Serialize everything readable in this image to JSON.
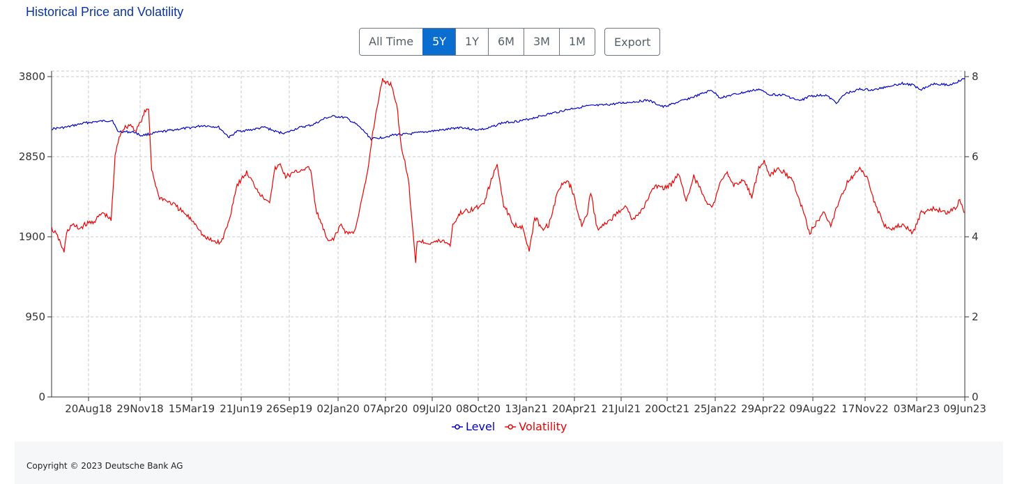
{
  "page": {
    "title": "Historical Price and Volatility",
    "range_buttons": [
      "All Time",
      "5Y",
      "1Y",
      "6M",
      "3M",
      "1M"
    ],
    "active_range": "5Y",
    "export_label": "Export",
    "copyright": "Copyright © 2023 Deutsche Bank AG"
  },
  "chart_data": {
    "type": "line",
    "title": "",
    "xlabel": "",
    "ylabel": "",
    "x_ticks": [
      "20Aug18",
      "29Nov18",
      "15Mar19",
      "21Jun19",
      "26Sep19",
      "02Jan20",
      "07Apr20",
      "09Jul20",
      "08Oct20",
      "13Jan21",
      "20Apr21",
      "21Jul21",
      "20Oct21",
      "25Jan22",
      "29Apr22",
      "09Aug22",
      "17Nov22",
      "03Mar23",
      "09Jun23"
    ],
    "x_range": [
      "2018-06-15",
      "2023-06-15"
    ],
    "y_left": {
      "ticks": [
        0,
        950,
        1900,
        2850,
        3800
      ],
      "range": [
        0,
        3800
      ]
    },
    "y_right": {
      "ticks": [
        0,
        2,
        4,
        6,
        8
      ],
      "range": [
        0,
        8
      ]
    },
    "grid": true,
    "legend_position": "bottom-center",
    "series": [
      {
        "name": "Level",
        "axis": "left",
        "color": "#0000cc",
        "points": [
          [
            "2018-06-15",
            3180
          ],
          [
            "2018-07-15",
            3200
          ],
          [
            "2018-08-20",
            3250
          ],
          [
            "2018-09-20",
            3270
          ],
          [
            "2018-10-15",
            3280
          ],
          [
            "2018-10-25",
            3150
          ],
          [
            "2018-11-29",
            3140
          ],
          [
            "2018-12-10",
            3100
          ],
          [
            "2019-01-15",
            3140
          ],
          [
            "2019-02-15",
            3170
          ],
          [
            "2019-03-15",
            3190
          ],
          [
            "2019-04-15",
            3220
          ],
          [
            "2019-05-15",
            3200
          ],
          [
            "2019-06-05",
            3080
          ],
          [
            "2019-06-21",
            3150
          ],
          [
            "2019-07-20",
            3170
          ],
          [
            "2019-08-15",
            3200
          ],
          [
            "2019-09-10",
            3140
          ],
          [
            "2019-09-26",
            3130
          ],
          [
            "2019-10-20",
            3190
          ],
          [
            "2019-11-20",
            3230
          ],
          [
            "2019-12-15",
            3310
          ],
          [
            "2020-01-02",
            3330
          ],
          [
            "2020-01-25",
            3310
          ],
          [
            "2020-02-15",
            3230
          ],
          [
            "2020-03-01",
            3150
          ],
          [
            "2020-03-15",
            3060
          ],
          [
            "2020-04-07",
            3080
          ],
          [
            "2020-05-01",
            3110
          ],
          [
            "2020-06-01",
            3120
          ],
          [
            "2020-07-09",
            3150
          ],
          [
            "2020-08-10",
            3170
          ],
          [
            "2020-09-10",
            3200
          ],
          [
            "2020-10-08",
            3170
          ],
          [
            "2020-11-01",
            3180
          ],
          [
            "2020-12-01",
            3250
          ],
          [
            "2021-01-13",
            3280
          ],
          [
            "2021-02-15",
            3330
          ],
          [
            "2021-03-15",
            3370
          ],
          [
            "2021-04-20",
            3420
          ],
          [
            "2021-05-20",
            3450
          ],
          [
            "2021-06-20",
            3460
          ],
          [
            "2021-07-21",
            3480
          ],
          [
            "2021-08-20",
            3500
          ],
          [
            "2021-09-20",
            3520
          ],
          [
            "2021-10-20",
            3440
          ],
          [
            "2021-11-20",
            3500
          ],
          [
            "2021-12-20",
            3560
          ],
          [
            "2022-01-25",
            3640
          ],
          [
            "2022-02-10",
            3550
          ],
          [
            "2022-03-05",
            3580
          ],
          [
            "2022-04-29",
            3650
          ],
          [
            "2022-05-20",
            3590
          ],
          [
            "2022-06-20",
            3580
          ],
          [
            "2022-07-20",
            3510
          ],
          [
            "2022-08-09",
            3570
          ],
          [
            "2022-09-10",
            3580
          ],
          [
            "2022-10-01",
            3490
          ],
          [
            "2022-10-20",
            3600
          ],
          [
            "2022-11-17",
            3650
          ],
          [
            "2022-12-15",
            3640
          ],
          [
            "2023-01-15",
            3690
          ],
          [
            "2023-02-10",
            3720
          ],
          [
            "2023-03-03",
            3700
          ],
          [
            "2023-03-20",
            3650
          ],
          [
            "2023-04-15",
            3720
          ],
          [
            "2023-05-15",
            3700
          ],
          [
            "2023-06-09",
            3760
          ],
          [
            "2023-06-15",
            3780
          ]
        ]
      },
      {
        "name": "Volatility",
        "axis": "right",
        "color": "#ee0000",
        "points": [
          [
            "2018-06-15",
            4.2
          ],
          [
            "2018-06-22",
            4.1
          ],
          [
            "2018-07-01",
            3.9
          ],
          [
            "2018-07-10",
            3.6
          ],
          [
            "2018-07-15",
            4.1
          ],
          [
            "2018-07-25",
            4.3
          ],
          [
            "2018-08-10",
            4.2
          ],
          [
            "2018-08-20",
            4.3
          ],
          [
            "2018-09-10",
            4.4
          ],
          [
            "2018-09-25",
            4.6
          ],
          [
            "2018-10-05",
            4.5
          ],
          [
            "2018-10-12",
            4.4
          ],
          [
            "2018-10-20",
            6.0
          ],
          [
            "2018-10-28",
            6.5
          ],
          [
            "2018-11-05",
            6.7
          ],
          [
            "2018-11-20",
            6.8
          ],
          [
            "2018-11-29",
            6.65
          ],
          [
            "2018-12-10",
            6.85
          ],
          [
            "2018-12-18",
            7.1
          ],
          [
            "2018-12-26",
            7.2
          ],
          [
            "2019-01-01",
            5.7
          ],
          [
            "2019-01-15",
            5.0
          ],
          [
            "2019-02-15",
            4.8
          ],
          [
            "2019-03-15",
            4.5
          ],
          [
            "2019-04-01",
            4.3
          ],
          [
            "2019-04-15",
            4.0
          ],
          [
            "2019-05-01",
            3.9
          ],
          [
            "2019-05-20",
            3.85
          ],
          [
            "2019-06-05",
            4.4
          ],
          [
            "2019-06-15",
            5.0
          ],
          [
            "2019-06-21",
            5.3
          ],
          [
            "2019-07-10",
            5.6
          ],
          [
            "2019-07-25",
            5.3
          ],
          [
            "2019-08-10",
            5.0
          ],
          [
            "2019-08-25",
            4.9
          ],
          [
            "2019-09-05",
            5.7
          ],
          [
            "2019-09-15",
            5.8
          ],
          [
            "2019-09-26",
            5.5
          ],
          [
            "2019-10-15",
            5.6
          ],
          [
            "2019-11-01",
            5.7
          ],
          [
            "2019-11-15",
            5.7
          ],
          [
            "2019-11-25",
            4.7
          ],
          [
            "2019-12-10",
            4.2
          ],
          [
            "2019-12-20",
            3.85
          ],
          [
            "2020-01-02",
            4.0
          ],
          [
            "2020-01-15",
            4.3
          ],
          [
            "2020-01-25",
            4.1
          ],
          [
            "2020-02-10",
            4.1
          ],
          [
            "2020-02-25",
            4.9
          ],
          [
            "2020-03-08",
            5.6
          ],
          [
            "2020-03-18",
            6.6
          ],
          [
            "2020-04-01",
            7.6
          ],
          [
            "2020-04-07",
            7.9
          ],
          [
            "2020-04-25",
            7.8
          ],
          [
            "2020-05-05",
            7.3
          ],
          [
            "2020-05-15",
            6.2
          ],
          [
            "2020-05-28",
            5.5
          ],
          [
            "2020-06-05",
            4.3
          ],
          [
            "2020-06-12",
            3.4
          ],
          [
            "2020-06-15",
            3.9
          ],
          [
            "2020-07-09",
            3.85
          ],
          [
            "2020-08-05",
            3.9
          ],
          [
            "2020-08-20",
            3.8
          ],
          [
            "2020-08-25",
            4.3
          ],
          [
            "2020-09-10",
            4.6
          ],
          [
            "2020-10-08",
            4.7
          ],
          [
            "2020-10-25",
            4.8
          ],
          [
            "2020-11-10",
            5.4
          ],
          [
            "2020-11-22",
            5.8
          ],
          [
            "2020-12-05",
            4.8
          ],
          [
            "2020-12-25",
            4.3
          ],
          [
            "2021-01-13",
            4.25
          ],
          [
            "2021-01-25",
            3.6
          ],
          [
            "2021-02-05",
            4.5
          ],
          [
            "2021-02-20",
            4.2
          ],
          [
            "2021-03-05",
            4.3
          ],
          [
            "2021-03-25",
            5.2
          ],
          [
            "2021-04-10",
            5.4
          ],
          [
            "2021-04-20",
            5.2
          ],
          [
            "2021-05-10",
            4.3
          ],
          [
            "2021-05-20",
            4.5
          ],
          [
            "2021-05-28",
            5.1
          ],
          [
            "2021-06-10",
            4.2
          ],
          [
            "2021-06-25",
            4.3
          ],
          [
            "2021-07-21",
            4.6
          ],
          [
            "2021-08-05",
            4.8
          ],
          [
            "2021-08-20",
            4.4
          ],
          [
            "2021-09-10",
            4.7
          ],
          [
            "2021-09-25",
            5.1
          ],
          [
            "2021-10-10",
            5.3
          ],
          [
            "2021-10-20",
            5.2
          ],
          [
            "2021-11-05",
            5.3
          ],
          [
            "2021-11-20",
            5.6
          ],
          [
            "2021-12-05",
            4.9
          ],
          [
            "2021-12-20",
            5.5
          ],
          [
            "2022-01-10",
            5.0
          ],
          [
            "2022-01-25",
            4.7
          ],
          [
            "2022-02-10",
            5.3
          ],
          [
            "2022-02-25",
            5.6
          ],
          [
            "2022-03-10",
            5.3
          ],
          [
            "2022-04-01",
            5.4
          ],
          [
            "2022-04-15",
            5.0
          ],
          [
            "2022-04-29",
            5.7
          ],
          [
            "2022-05-10",
            5.9
          ],
          [
            "2022-05-20",
            5.5
          ],
          [
            "2022-06-05",
            5.7
          ],
          [
            "2022-06-20",
            5.6
          ],
          [
            "2022-07-05",
            5.4
          ],
          [
            "2022-07-20",
            4.9
          ],
          [
            "2022-08-09",
            4.1
          ],
          [
            "2022-08-20",
            4.3
          ],
          [
            "2022-09-05",
            4.6
          ],
          [
            "2022-09-20",
            4.3
          ],
          [
            "2022-10-10",
            5.0
          ],
          [
            "2022-10-25",
            5.4
          ],
          [
            "2022-11-17",
            5.7
          ],
          [
            "2022-12-05",
            5.4
          ],
          [
            "2022-12-15",
            4.9
          ],
          [
            "2023-01-05",
            4.3
          ],
          [
            "2023-01-20",
            4.2
          ],
          [
            "2023-02-10",
            4.3
          ],
          [
            "2023-03-03",
            4.1
          ],
          [
            "2023-03-20",
            4.6
          ],
          [
            "2023-04-15",
            4.7
          ],
          [
            "2023-05-10",
            4.6
          ],
          [
            "2023-05-25",
            4.7
          ],
          [
            "2023-06-05",
            4.9
          ],
          [
            "2023-06-15",
            4.6
          ]
        ]
      }
    ]
  }
}
